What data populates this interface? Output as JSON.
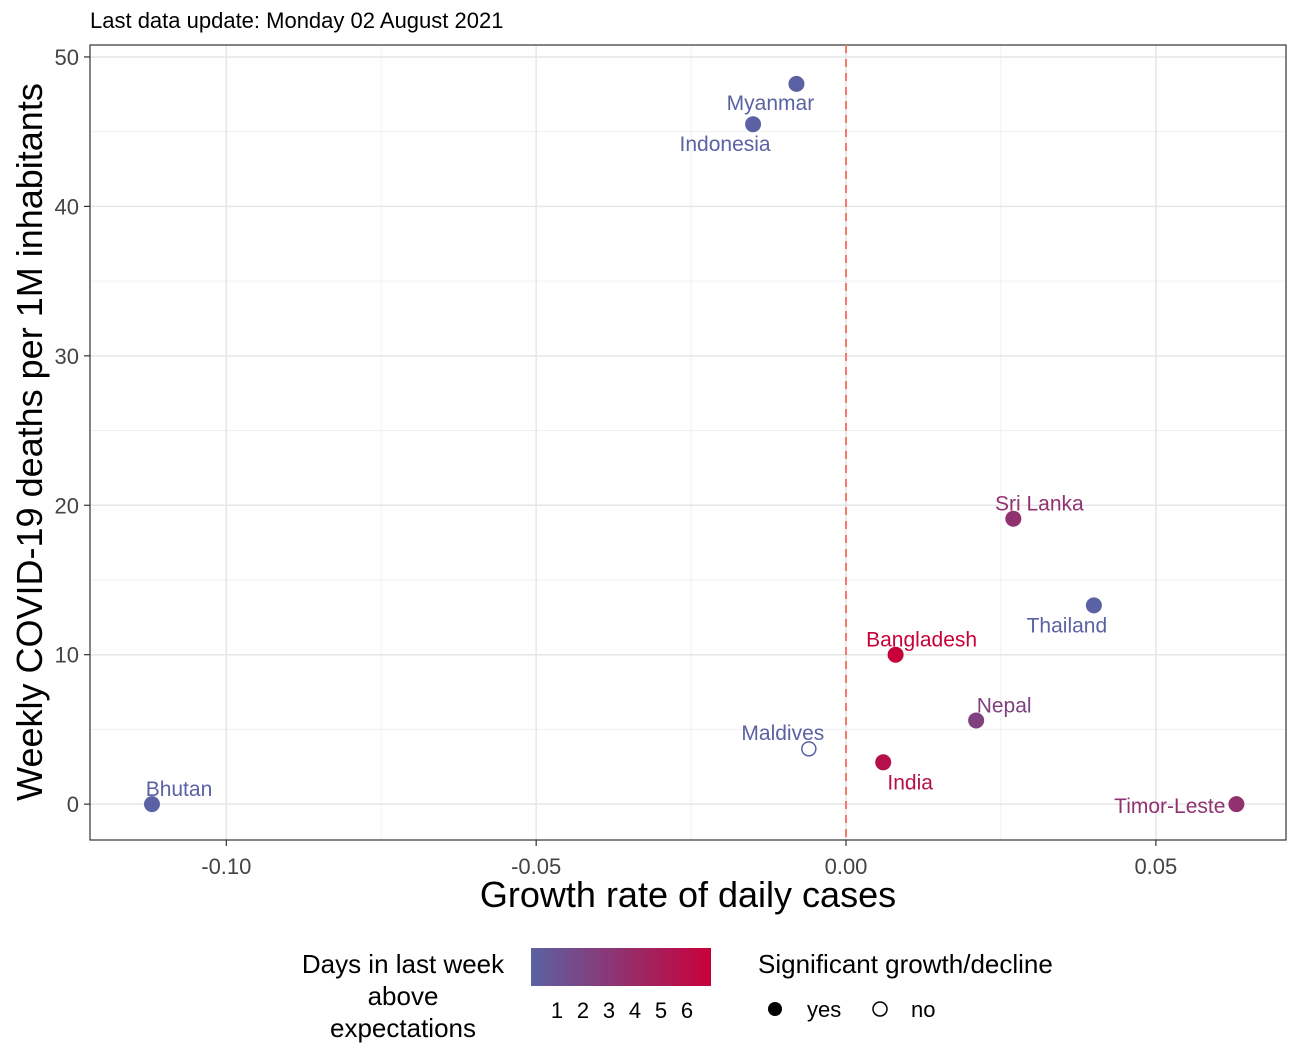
{
  "chart_data": {
    "type": "scatter",
    "subtitle": "Last data update: Monday 02 August 2021",
    "xlabel": "Growth rate of daily cases",
    "ylabel": "Weekly COVID-19 deaths per 1M inhabitants",
    "xlim": [
      -0.122,
      0.071
    ],
    "ylim": [
      -2.4,
      50.8
    ],
    "x_ticks": [
      -0.1,
      -0.05,
      0.0,
      0.05
    ],
    "x_tick_labels": [
      "-0.10",
      "-0.05",
      "0.00",
      "0.05"
    ],
    "y_ticks": [
      0,
      10,
      20,
      30,
      40,
      50
    ],
    "y_tick_labels": [
      "0",
      "10",
      "20",
      "30",
      "40",
      "50"
    ],
    "grid": true,
    "reference_line": {
      "x": 0,
      "style": "dashed",
      "color": "#f8766d"
    },
    "points": [
      {
        "label": "Myanmar",
        "x": -0.008,
        "y": 48.2,
        "days": 1,
        "significant": true
      },
      {
        "label": "Indonesia",
        "x": -0.015,
        "y": 45.5,
        "days": 1,
        "significant": true
      },
      {
        "label": "Sri Lanka",
        "x": 0.027,
        "y": 19.1,
        "days": 4,
        "significant": true
      },
      {
        "label": "Thailand",
        "x": 0.04,
        "y": 13.3,
        "days": 1,
        "significant": true
      },
      {
        "label": "Bangladesh",
        "x": 0.008,
        "y": 10.0,
        "days": 7,
        "significant": true
      },
      {
        "label": "Nepal",
        "x": 0.021,
        "y": 5.6,
        "days": 3,
        "significant": true
      },
      {
        "label": "Maldives",
        "x": -0.006,
        "y": 3.7,
        "days": 1,
        "significant": false
      },
      {
        "label": "India",
        "x": 0.006,
        "y": 2.8,
        "days": 6,
        "significant": true
      },
      {
        "label": "Bhutan",
        "x": -0.112,
        "y": 0.0,
        "days": 1,
        "significant": true
      },
      {
        "label": "Timor-Leste",
        "x": 0.063,
        "y": 0.0,
        "days": 4,
        "significant": true
      }
    ],
    "legend": {
      "placement": "bottom",
      "color": {
        "title": "Days in last week\nabove\nexpectations",
        "low_color": "#5b62a3",
        "high_color": "#c8003a",
        "ticks": [
          "1",
          "2",
          "3",
          "4",
          "5",
          "6"
        ]
      },
      "shape": {
        "title": "Significant growth/decline",
        "entries": [
          "yes",
          "no"
        ]
      }
    }
  }
}
